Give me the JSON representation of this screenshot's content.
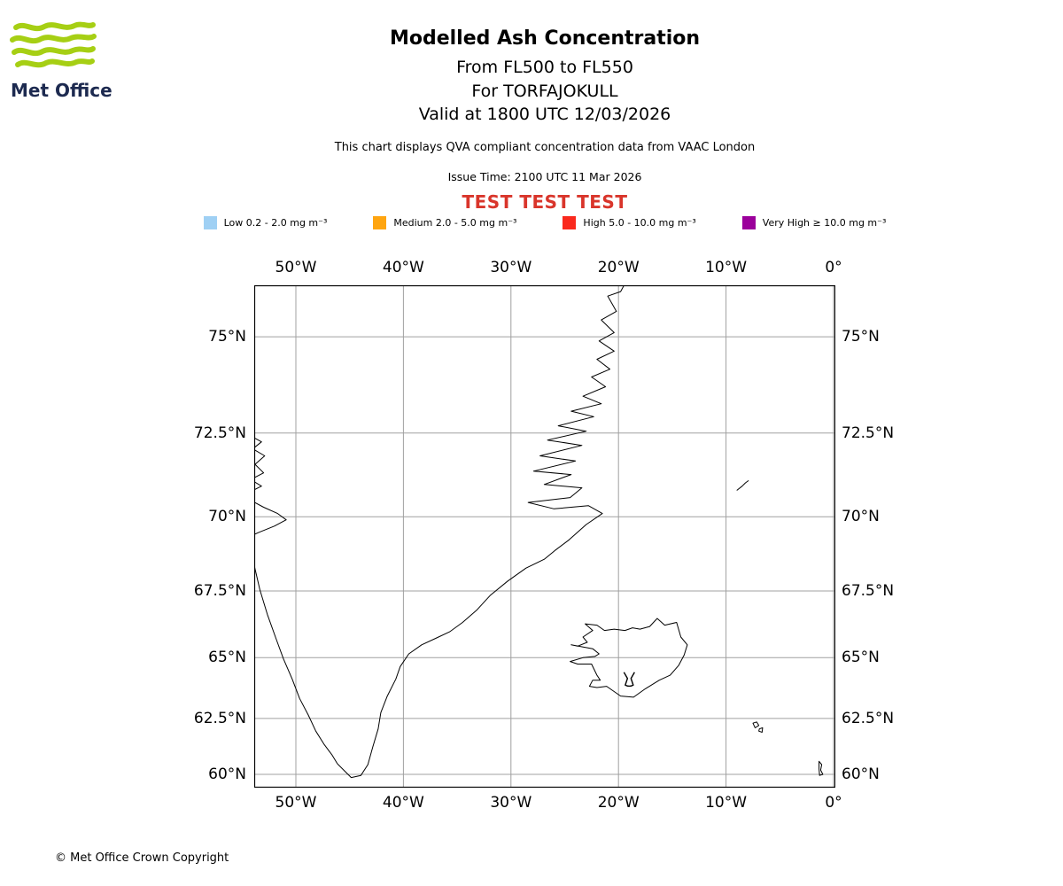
{
  "brand": {
    "logo_green": "#a6cf14",
    "logo_navy": "#1d2a50"
  },
  "header": {
    "logo_text": "Met Office",
    "title": "Modelled Ash Concentration",
    "subtitles": [
      "From FL500 to FL550",
      "For TORFAJOKULL",
      "Valid at 1800 UTC 12/03/2026"
    ],
    "disclaimer": "This chart displays QVA compliant concentration data from VAAC London",
    "issue_time": "Issue Time: 2100 UTC 11 Mar 2026",
    "test_banner": "TEST TEST TEST",
    "test_color": "#d9352b"
  },
  "legend": {
    "items": [
      {
        "name": "low",
        "label": "Low 0.2 - 2.0 mg m⁻³",
        "color": "#9fd0f4"
      },
      {
        "name": "medium",
        "label": "Medium 2.0 - 5.0 mg m⁻³",
        "color": "#ffa510"
      },
      {
        "name": "high",
        "label": "High 5.0 - 10.0 mg m⁻³",
        "color": "#fa291d"
      },
      {
        "name": "very-high",
        "label": "Very High  ≥  10.0 mg m⁻³",
        "color": "#9b009b"
      }
    ]
  },
  "map": {
    "x_ticks": [
      "50°W",
      "40°W",
      "30°W",
      "20°W",
      "10°W",
      "0°"
    ],
    "y_ticks": [
      "75°N",
      "72.5°N",
      "70°N",
      "67.5°N",
      "65°N",
      "62.5°N",
      "60°N"
    ],
    "grid_lons": [
      -50,
      -40,
      -30,
      -20,
      -10,
      0
    ],
    "grid_lats": [
      75,
      72.5,
      70,
      67.5,
      65,
      62.5,
      60
    ],
    "grid_color": "#a0a0a0",
    "volcano": {
      "name": "TORFAJOKULL",
      "lon": -19.0,
      "lat": 64.1
    }
  },
  "footer": {
    "copyright": "© Met Office Crown Copyright"
  }
}
